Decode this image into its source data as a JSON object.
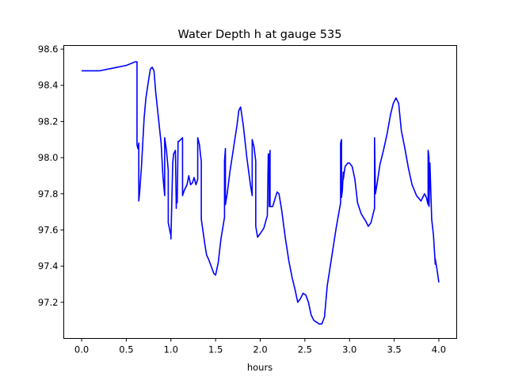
{
  "chart_data": {
    "type": "line",
    "title": "Water Depth h at gauge 535",
    "xlabel": "hours",
    "ylabel": "",
    "xlim": [
      -0.2,
      4.2
    ],
    "ylim": [
      97.0,
      98.62
    ],
    "xticks": [
      0.0,
      0.5,
      1.0,
      1.5,
      2.0,
      2.5,
      3.0,
      3.5,
      4.0
    ],
    "xtick_labels": [
      "0.0",
      "0.5",
      "1.0",
      "1.5",
      "2.0",
      "2.5",
      "3.0",
      "3.5",
      "4.0"
    ],
    "yticks": [
      97.2,
      97.4,
      97.6,
      97.8,
      98.0,
      98.2,
      98.4,
      98.6
    ],
    "ytick_labels": [
      "97.2",
      "97.4",
      "97.6",
      "97.8",
      "98.0",
      "98.2",
      "98.4",
      "98.6"
    ],
    "grid": false,
    "legend": "none",
    "series": [
      {
        "color": "#0000ff",
        "x": [
          0.0,
          0.1,
          0.2,
          0.3,
          0.4,
          0.5,
          0.55,
          0.6,
          0.62,
          0.62,
          0.63,
          0.64,
          0.64,
          0.65,
          0.67,
          0.7,
          0.72,
          0.75,
          0.77,
          0.79,
          0.81,
          0.83,
          0.86,
          0.89,
          0.91,
          0.93,
          0.93,
          0.95,
          0.97,
          0.97,
          0.99,
          1.0,
          1.0,
          1.02,
          1.03,
          1.05,
          1.06,
          1.06,
          1.07,
          1.08,
          1.08,
          1.09,
          1.13,
          1.13,
          1.15,
          1.18,
          1.2,
          1.22,
          1.24,
          1.26,
          1.28,
          1.3,
          1.3,
          1.32,
          1.33,
          1.34,
          1.34,
          1.36,
          1.38,
          1.4,
          1.42,
          1.45,
          1.48,
          1.5,
          1.53,
          1.56,
          1.6,
          1.6,
          1.61,
          1.61,
          1.63,
          1.66,
          1.7,
          1.74,
          1.76,
          1.78,
          1.81,
          1.85,
          1.89,
          1.91,
          1.91,
          1.93,
          1.95,
          1.95,
          1.97,
          2.0,
          2.04,
          2.08,
          2.08,
          2.09,
          2.1,
          2.1,
          2.11,
          2.11,
          2.14,
          2.17,
          2.19,
          2.21,
          2.24,
          2.28,
          2.32,
          2.36,
          2.39,
          2.42,
          2.45,
          2.48,
          2.51,
          2.54,
          2.57,
          2.6,
          2.63,
          2.66,
          2.69,
          2.72,
          2.75,
          2.8,
          2.85,
          2.9,
          2.9,
          2.91,
          2.91,
          2.92,
          2.93,
          2.93,
          2.95,
          2.98,
          3.0,
          3.03,
          3.06,
          3.09,
          3.13,
          3.18,
          3.21,
          3.24,
          3.28,
          3.28,
          3.29,
          3.31,
          3.34,
          3.38,
          3.42,
          3.46,
          3.49,
          3.52,
          3.55,
          3.58,
          3.62,
          3.66,
          3.7,
          3.75,
          3.8,
          3.84,
          3.86,
          3.88,
          3.88,
          3.89,
          3.89,
          3.9,
          3.92,
          3.94,
          3.95,
          3.96,
          3.96,
          3.98,
          4.0
        ],
        "y": [
          98.48,
          98.48,
          98.48,
          98.49,
          98.5,
          98.51,
          98.52,
          98.53,
          98.53,
          98.07,
          98.05,
          98.08,
          97.76,
          97.81,
          97.95,
          98.22,
          98.33,
          98.43,
          98.49,
          98.5,
          98.48,
          98.36,
          98.22,
          98.08,
          97.9,
          97.79,
          98.11,
          98.04,
          97.93,
          97.64,
          97.59,
          97.57,
          97.55,
          97.97,
          98.02,
          98.04,
          97.72,
          97.75,
          97.75,
          98.08,
          98.09,
          98.09,
          98.11,
          97.79,
          97.82,
          97.85,
          97.9,
          97.85,
          97.86,
          97.89,
          97.85,
          97.88,
          98.11,
          98.07,
          98.02,
          97.98,
          97.66,
          97.59,
          97.52,
          97.46,
          97.44,
          97.4,
          97.36,
          97.35,
          97.42,
          97.55,
          97.67,
          97.98,
          98.05,
          97.74,
          97.8,
          97.92,
          98.05,
          98.18,
          98.26,
          98.28,
          98.18,
          98.0,
          97.85,
          97.79,
          98.1,
          98.06,
          97.98,
          97.62,
          97.56,
          97.58,
          97.61,
          97.68,
          97.7,
          98.02,
          98.02,
          97.73,
          98.04,
          97.73,
          97.73,
          97.78,
          97.81,
          97.8,
          97.71,
          97.56,
          97.43,
          97.33,
          97.27,
          97.2,
          97.22,
          97.25,
          97.24,
          97.2,
          97.13,
          97.1,
          97.09,
          97.08,
          97.08,
          97.12,
          97.29,
          97.45,
          97.61,
          97.75,
          98.08,
          98.1,
          97.78,
          97.82,
          97.92,
          97.88,
          97.95,
          97.97,
          97.97,
          97.95,
          97.88,
          97.75,
          97.69,
          97.65,
          97.62,
          97.64,
          97.72,
          98.11,
          97.8,
          97.86,
          97.96,
          98.04,
          98.13,
          98.24,
          98.3,
          98.33,
          98.3,
          98.15,
          98.05,
          97.94,
          97.85,
          97.79,
          97.76,
          97.8,
          97.78,
          97.74,
          98.04,
          98.0,
          97.73,
          97.97,
          97.66,
          97.57,
          97.49,
          97.41,
          97.44,
          97.38,
          97.31
        ]
      }
    ]
  }
}
